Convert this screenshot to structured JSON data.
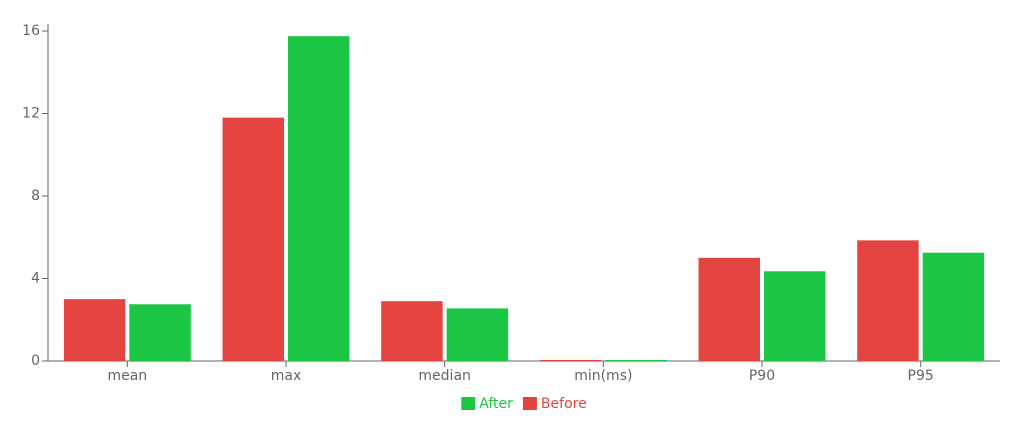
{
  "chart_data": {
    "type": "bar",
    "categories": [
      "mean",
      "max",
      "median",
      "min(ms)",
      "P90",
      "P95"
    ],
    "series": [
      {
        "name": "Before",
        "color": "#e3443f",
        "values": [
          3.0,
          11.8,
          2.9,
          0.05,
          5.0,
          5.85
        ]
      },
      {
        "name": "After",
        "color": "#1bc645",
        "values": [
          2.75,
          15.75,
          2.55,
          0.05,
          4.35,
          5.25
        ]
      }
    ],
    "ylim": [
      0,
      16
    ],
    "yticks": [
      0,
      4,
      8,
      12,
      16
    ],
    "grid": false
  }
}
